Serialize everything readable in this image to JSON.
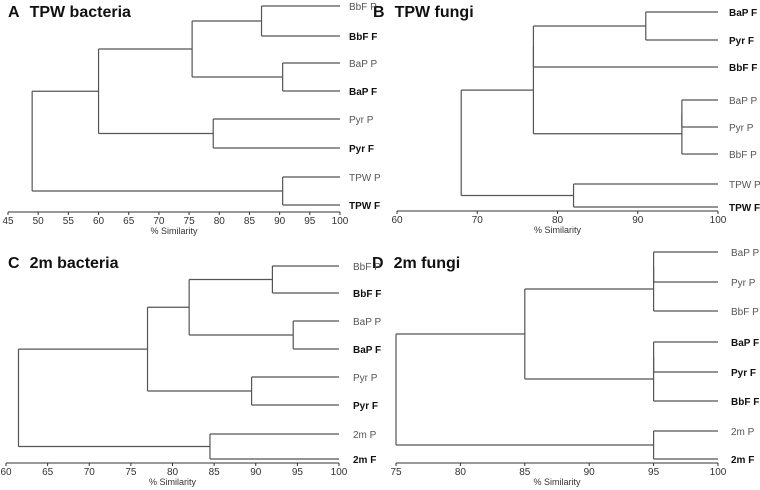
{
  "panels": [
    {
      "letter": "A",
      "title": "TPW bacteria",
      "axis": {
        "label": "% Similarity",
        "min": 45,
        "max": 100,
        "ticks": [
          45,
          50,
          55,
          60,
          65,
          70,
          75,
          80,
          85,
          90,
          95,
          100
        ]
      },
      "leaves": [
        {
          "label": "BbF P",
          "bold": false
        },
        {
          "label": "BbF F",
          "bold": true
        },
        {
          "label": "BaP P",
          "bold": false
        },
        {
          "label": "BaP F",
          "bold": true
        },
        {
          "label": "Pyr P",
          "bold": false
        },
        {
          "label": "Pyr F",
          "bold": true
        },
        {
          "label": "TPW P",
          "bold": false
        },
        {
          "label": "TPW F",
          "bold": true
        }
      ],
      "merges": [
        {
          "a": 0,
          "b": 1,
          "similarity": 87
        },
        {
          "a": 2,
          "b": 3,
          "similarity": 90.5
        },
        {
          "a": "m0",
          "b": "m1",
          "similarity": 75.5
        },
        {
          "a": 4,
          "b": 5,
          "similarity": 79
        },
        {
          "a": "m2",
          "b": "m3",
          "similarity": 60
        },
        {
          "a": 6,
          "b": 7,
          "similarity": 90.5
        },
        {
          "a": "m4",
          "b": "m5",
          "similarity": 49
        }
      ]
    },
    {
      "letter": "B",
      "title": "TPW fungi",
      "axis": {
        "label": "% Similarity",
        "min": 60,
        "max": 100,
        "ticks": [
          60,
          70,
          80,
          90,
          100
        ]
      },
      "leaves": [
        {
          "label": "BaP F",
          "bold": true
        },
        {
          "label": "Pyr F",
          "bold": true
        },
        {
          "label": "BbF F",
          "bold": true
        },
        {
          "label": "BaP P",
          "bold": false
        },
        {
          "label": "Pyr P",
          "bold": false
        },
        {
          "label": "BbF P",
          "bold": false
        },
        {
          "label": "TPW P",
          "bold": false
        },
        {
          "label": "TPW F",
          "bold": true
        }
      ],
      "merges": [
        {
          "a": 0,
          "b": 1,
          "similarity": 91
        },
        {
          "a": 3,
          "b": 4,
          "similarity": 95.5
        },
        {
          "a": "m1",
          "b": 5,
          "similarity": 95.5
        },
        {
          "a": "m0",
          "b": 2,
          "similarity": 77
        },
        {
          "a": "m3",
          "b": "m2",
          "similarity": 77
        },
        {
          "a": 6,
          "b": 7,
          "similarity": 82
        },
        {
          "a": "m4",
          "b": "m5",
          "similarity": 68
        }
      ]
    },
    {
      "letter": "C",
      "title": "2m bacteria",
      "axis": {
        "label": "% Similarity",
        "min": 60,
        "max": 100,
        "ticks": [
          60,
          65,
          70,
          75,
          80,
          85,
          90,
          95,
          100
        ]
      },
      "leaves": [
        {
          "label": "BbF P",
          "bold": false
        },
        {
          "label": "BbF F",
          "bold": true
        },
        {
          "label": "BaP P",
          "bold": false
        },
        {
          "label": "BaP F",
          "bold": true
        },
        {
          "label": "Pyr P",
          "bold": false
        },
        {
          "label": "Pyr F",
          "bold": true
        },
        {
          "label": "2m P",
          "bold": false
        },
        {
          "label": "2m F",
          "bold": true
        }
      ],
      "merges": [
        {
          "a": 0,
          "b": 1,
          "similarity": 92
        },
        {
          "a": 2,
          "b": 3,
          "similarity": 94.5
        },
        {
          "a": "m0",
          "b": "m1",
          "similarity": 82
        },
        {
          "a": 4,
          "b": 5,
          "similarity": 89.5
        },
        {
          "a": "m2",
          "b": "m3",
          "similarity": 77
        },
        {
          "a": 6,
          "b": 7,
          "similarity": 84.5
        },
        {
          "a": "m4",
          "b": "m5",
          "similarity": 61.5
        }
      ]
    },
    {
      "letter": "D",
      "title": "2m fungi",
      "axis": {
        "label": "% Similarity",
        "min": 75,
        "max": 100,
        "ticks": [
          75,
          80,
          85,
          90,
          95,
          100
        ]
      },
      "leaves": [
        {
          "label": "BaP P",
          "bold": false
        },
        {
          "label": "Pyr P",
          "bold": false
        },
        {
          "label": "BbF P",
          "bold": false
        },
        {
          "label": "BaP F",
          "bold": true
        },
        {
          "label": "Pyr F",
          "bold": true
        },
        {
          "label": "BbF F",
          "bold": true
        },
        {
          "label": "2m P",
          "bold": false
        },
        {
          "label": "2m F",
          "bold": true
        }
      ],
      "merges": [
        {
          "a": 0,
          "b": 1,
          "similarity": 95
        },
        {
          "a": "m0",
          "b": 2,
          "similarity": 95
        },
        {
          "a": 3,
          "b": 4,
          "similarity": 95
        },
        {
          "a": "m2",
          "b": 5,
          "similarity": 95
        },
        {
          "a": "m1",
          "b": "m3",
          "similarity": 85
        },
        {
          "a": 6,
          "b": 7,
          "similarity": 95
        },
        {
          "a": "m4",
          "b": "m5",
          "similarity": 75
        }
      ]
    }
  ]
}
